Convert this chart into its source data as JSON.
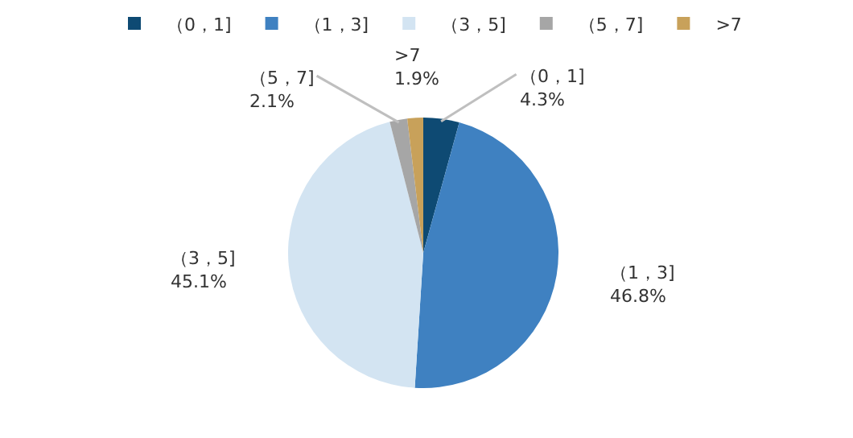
{
  "chart_data": {
    "type": "pie",
    "categories": [
      "（0，1]",
      "（1，3]",
      "（3，5]",
      "（5，7]",
      ">7"
    ],
    "values": [
      4.3,
      46.8,
      45.1,
      2.1,
      1.9
    ],
    "value_labels": [
      "4.3%",
      "46.8%",
      "45.1%",
      "2.1%",
      "1.9%"
    ],
    "colors": [
      "#0e4a73",
      "#3f81c1",
      "#d3e4f2",
      "#a6a6a6",
      "#c8a15a"
    ],
    "legend": "top"
  }
}
